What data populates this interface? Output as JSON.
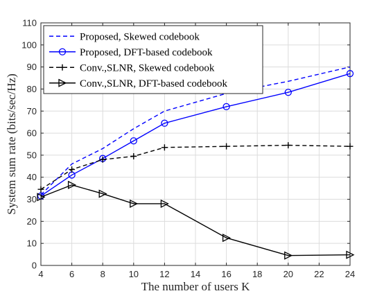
{
  "chart_data": {
    "type": "line",
    "title": "",
    "xlabel": "The number of users K",
    "ylabel": "System sum rate (bits/sec/Hz)",
    "xlim": [
      4,
      24
    ],
    "ylim": [
      0,
      110
    ],
    "xticks": [
      4,
      6,
      8,
      10,
      12,
      14,
      16,
      18,
      20,
      22,
      24
    ],
    "yticks": [
      0,
      10,
      20,
      30,
      40,
      50,
      60,
      70,
      80,
      90,
      100,
      110
    ],
    "grid": true,
    "legend_position": "top-left",
    "series": [
      {
        "name": "Proposed, Skewed codebook",
        "color": "#0000ff",
        "line_style": "dashed",
        "marker": "none",
        "x": [
          4,
          6,
          8,
          10,
          12,
          16,
          20,
          24
        ],
        "values": [
          32,
          46,
          53,
          62,
          70,
          78,
          83.5,
          90
        ]
      },
      {
        "name": "Proposed, DFT-based codebook",
        "color": "#0000ff",
        "line_style": "solid",
        "marker": "circle",
        "x": [
          4,
          6,
          8,
          10,
          12,
          16,
          20,
          24
        ],
        "values": [
          31.5,
          41,
          48.5,
          56.5,
          64.5,
          72,
          78.5,
          87
        ]
      },
      {
        "name": "Conv.,SLNR, Skewed codebook",
        "color": "#000000",
        "line_style": "dashed",
        "marker": "plus",
        "x": [
          4,
          6,
          8,
          10,
          12,
          16,
          20,
          24
        ],
        "values": [
          34.5,
          43.5,
          48,
          49.5,
          53.5,
          54,
          54.5,
          54
        ]
      },
      {
        "name": "Conv.,SLNR, DFT-based codebook",
        "color": "#000000",
        "line_style": "solid",
        "marker": "triangle-right",
        "x": [
          4,
          6,
          8,
          10,
          12,
          16,
          20,
          24
        ],
        "values": [
          31,
          36.5,
          32.5,
          28,
          28,
          12.5,
          4.5,
          4.8
        ]
      }
    ]
  }
}
